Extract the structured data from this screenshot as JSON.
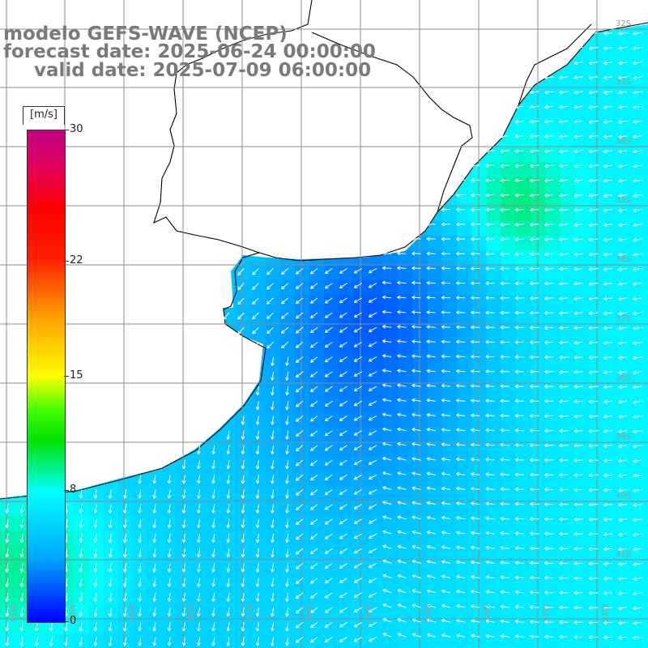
{
  "title": {
    "line1": "modelo GEFS-WAVE (NCEP)",
    "line2": "forecast date: 2025-06-24 00:00:00",
    "line3": "valid date: 2025-07-09 06:00:00"
  },
  "colorbar": {
    "unit": "[m/s]",
    "ticks": [
      "30",
      "22",
      "15",
      "8",
      "0"
    ],
    "values": [
      30,
      22,
      15,
      8,
      0
    ],
    "colors": [
      "#0000ff",
      "#00a8ff",
      "#00ffff",
      "#00e000",
      "#ffff00",
      "#ffa000",
      "#ff0000",
      "#c0007f"
    ]
  },
  "map": {
    "lat_labels": [
      "32S",
      "33S",
      "34S",
      "35S",
      "36S",
      "37S",
      "38S",
      "39S",
      "40S",
      "41S"
    ],
    "lon_labels": [
      "61W",
      "60W",
      "59W",
      "58W",
      "57W",
      "56W",
      "55W",
      "54W",
      "53W",
      "52W",
      "51W"
    ],
    "arrow_color": "#ffffff",
    "land_color": "#ffffff",
    "grid_color": "#8c8c8c",
    "coast_color": "#000000"
  }
}
